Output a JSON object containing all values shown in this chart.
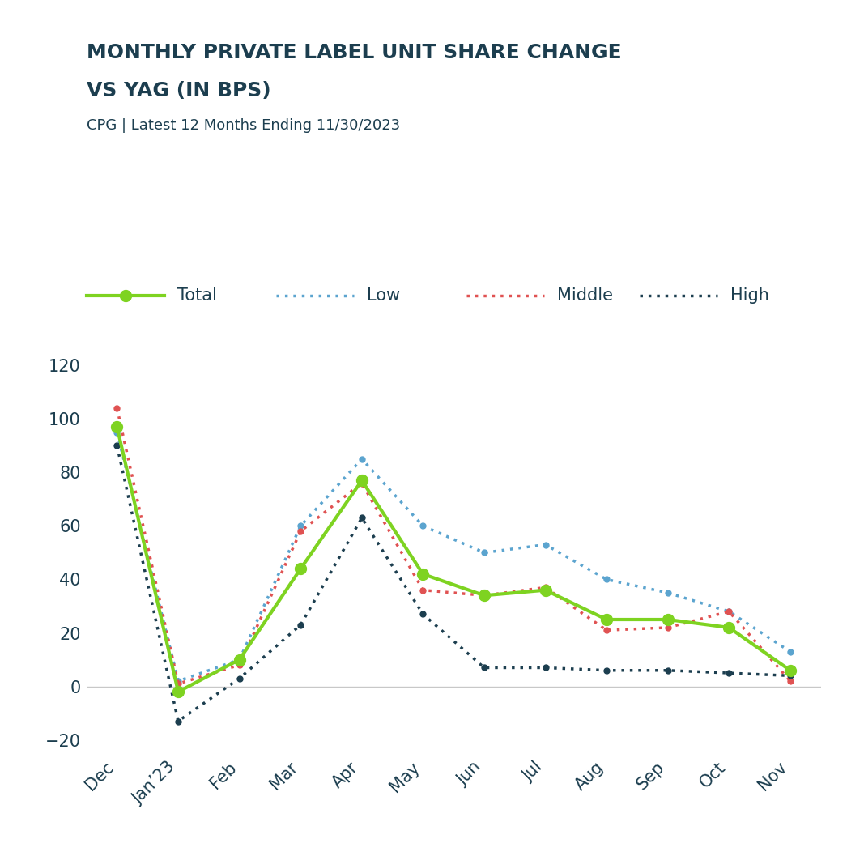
{
  "title_line1": "MONTHLY PRIVATE LABEL UNIT SHARE CHANGE",
  "title_line2": "VS YAG (IN BPS)",
  "subtitle": "CPG | Latest 12 Months Ending 11/30/2023",
  "x_labels": [
    "Dec",
    "Jan’23",
    "Feb",
    "Mar",
    "Apr",
    "May",
    "Jun",
    "Jul",
    "Aug",
    "Sep",
    "Oct",
    "Nov"
  ],
  "total": [
    97,
    -2,
    10,
    44,
    77,
    42,
    34,
    36,
    25,
    25,
    22,
    6
  ],
  "low": [
    95,
    2,
    10,
    60,
    85,
    60,
    50,
    53,
    40,
    35,
    28,
    13
  ],
  "middle": [
    104,
    1,
    8,
    58,
    76,
    36,
    34,
    37,
    21,
    22,
    28,
    2
  ],
  "high": [
    90,
    -13,
    3,
    23,
    63,
    27,
    7,
    7,
    6,
    6,
    5,
    4
  ],
  "total_color": "#7ED321",
  "low_color": "#5BA4CF",
  "middle_color": "#E05252",
  "high_color": "#1C3E4F",
  "ylim": [
    -25,
    135
  ],
  "yticks": [
    -20,
    0,
    20,
    40,
    60,
    80,
    100,
    120
  ],
  "title_color": "#1C3E4F",
  "subtitle_color": "#1C3E4F",
  "axis_color": "#1C3E4F",
  "background_color": "#ffffff",
  "zero_line_color": "#c8c8c8",
  "title_fontsize": 18,
  "subtitle_fontsize": 13,
  "tick_fontsize": 15,
  "legend_fontsize": 15
}
